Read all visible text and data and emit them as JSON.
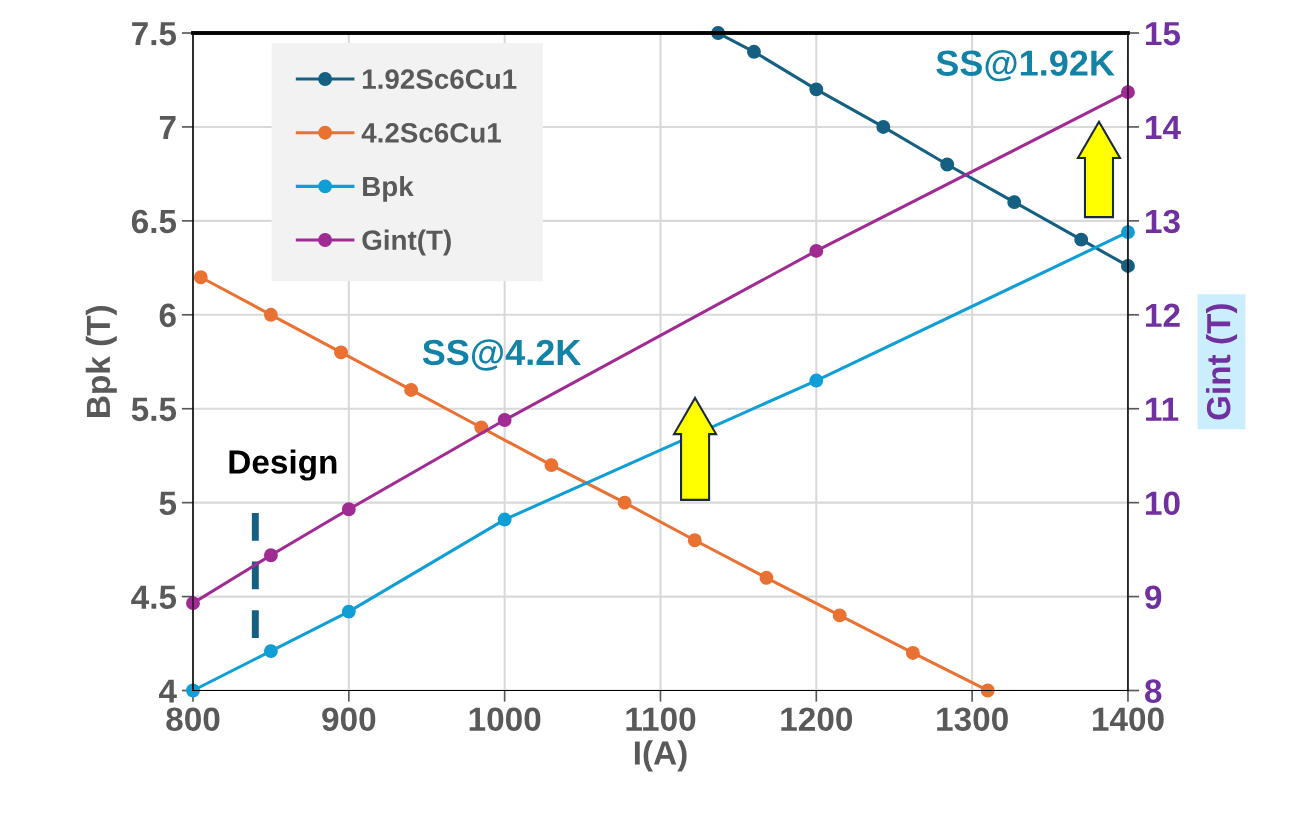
{
  "chart_data": {
    "type": "line",
    "xlabel": "I(A)",
    "ylabel": "Bpk (T)",
    "y2label": "Gint (T)",
    "xlim": [
      800,
      1400
    ],
    "xticks": [
      800,
      900,
      1000,
      1100,
      1200,
      1300,
      1400
    ],
    "ylim": [
      4,
      7.5
    ],
    "yticks": [
      4,
      4.5,
      5,
      5.5,
      6,
      6.5,
      7,
      7.5
    ],
    "y2lim": [
      8,
      15
    ],
    "y2ticks": [
      8,
      9,
      10,
      11,
      12,
      13,
      14,
      15
    ],
    "grid": true,
    "legend": "top left",
    "marker": "circle",
    "line_style": "solid",
    "series": [
      {
        "name": "1.92Sc6Cu1",
        "color": "#156082",
        "x": [
          1137,
          1160,
          1200,
          1243,
          1284,
          1327,
          1370,
          1400
        ],
        "values": [
          7.5,
          7.4,
          7.2,
          7.0,
          6.8,
          6.6,
          6.4,
          6.26
        ]
      },
      {
        "name": "4.2Sc6Cu1",
        "color": "#e97132",
        "x": [
          805,
          850,
          895,
          940,
          985,
          1030,
          1077,
          1122,
          1168,
          1215,
          1262,
          1310
        ],
        "values": [
          6.2,
          6.0,
          5.8,
          5.6,
          5.4,
          5.2,
          5.0,
          4.8,
          4.6,
          4.4,
          4.2,
          4.0
        ]
      },
      {
        "name": "Bpk",
        "color": "#0f9ed5",
        "x": [
          800,
          850,
          900,
          1000,
          1200,
          1400
        ],
        "values": [
          4.0,
          4.21,
          4.42,
          4.91,
          5.65,
          6.44
        ]
      },
      {
        "name": "Gint(T)",
        "color": "#a02b93",
        "axis": "y2",
        "x": [
          800,
          850,
          900,
          1000,
          1200,
          1400
        ],
        "values": [
          8.93,
          9.44,
          9.93,
          10.88,
          12.68,
          14.37
        ]
      }
    ],
    "ref_lines": [
      {
        "axis": "x",
        "value": 840,
        "label": "Design",
        "color": "#156082",
        "line_style": "dashed"
      }
    ],
    "annotations": [
      "SS@4.2K",
      "SS@1.92K"
    ]
  }
}
